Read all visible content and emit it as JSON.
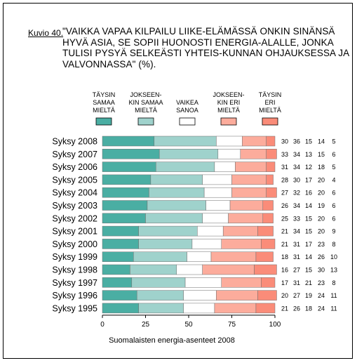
{
  "figure": {
    "label": "Kuvio 40.",
    "title": "\"VAIKKA VAPAA KILPAILU LIIKE-ELÄMÄSSÄ ONKIN SINÄNSÄ HYVÄ ASIA, SE SOPII HUONOSTI ENERGIA-ALALLE, JONKA TULISI PYSYÄ SELKEÄSTI YHTEIS-KUNNAN OHJAUKSESSA JA VALVONNASSA\" (%)."
  },
  "chart_data": {
    "type": "bar",
    "orientation": "horizontal",
    "stacked": true,
    "title": "",
    "xlabel": "Suomalaisten energia-asenteet 2008",
    "ylabel": "",
    "xlim": [
      0,
      100
    ],
    "xticks": [
      "0",
      "25",
      "50",
      "75",
      "100"
    ],
    "grid": false,
    "legend_position": "top",
    "categories": [
      "Syksy 2008",
      "Syksy 2007",
      "Syksy 2006",
      "Syksy 2005",
      "Syksy 2004",
      "Syksy 2003",
      "Syksy 2002",
      "Syksy 2001",
      "Syksy 2000",
      "Syksy 1999",
      "Syksy 1998",
      "Syksy 1997",
      "Syksy 1996",
      "Syksy 1995"
    ],
    "series": [
      {
        "name": "TÄYSIN SAMAA MIELTÄ",
        "legend_lines": [
          "TÄYSIN",
          "SAMAA",
          "MIELTÄ"
        ],
        "color": "#4aaea3",
        "values": [
          30,
          33,
          31,
          28,
          27,
          26,
          25,
          21,
          21,
          18,
          16,
          17,
          20,
          21
        ]
      },
      {
        "name": "JOKSEENKIN SAMAA MIELTÄ",
        "legend_lines": [
          "JOKSEEN-",
          "KIN SAMAA",
          "MIELTÄ"
        ],
        "color": "#9fd2cc",
        "values": [
          36,
          34,
          34,
          30,
          32,
          34,
          33,
          34,
          31,
          31,
          27,
          31,
          27,
          26
        ]
      },
      {
        "name": "VAIKEA SANOA",
        "legend_lines": [
          "VAIKEA",
          "SANOA"
        ],
        "color": "#ffffff",
        "values": [
          15,
          13,
          12,
          17,
          16,
          14,
          15,
          15,
          17,
          14,
          15,
          21,
          19,
          18
        ]
      },
      {
        "name": "JOKSEENKIN ERI MIELTÄ",
        "legend_lines": [
          "JOKSEEN-",
          "KIN ERI",
          "MIELTÄ"
        ],
        "color": "#fcac9c",
        "values": [
          14,
          15,
          18,
          20,
          20,
          19,
          20,
          20,
          23,
          26,
          30,
          23,
          24,
          24
        ]
      },
      {
        "name": "TÄYSIN ERI MIELTÄ",
        "legend_lines": [
          "TÄYSIN",
          "ERI",
          "MIELTÄ"
        ],
        "color": "#fa8c79",
        "values": [
          5,
          6,
          5,
          4,
          6,
          6,
          6,
          9,
          8,
          10,
          13,
          8,
          11,
          11
        ]
      }
    ]
  }
}
